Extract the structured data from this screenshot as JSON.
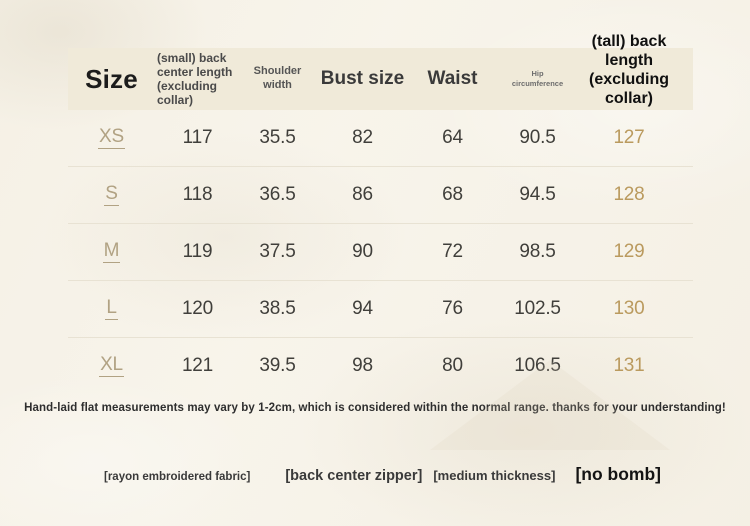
{
  "table": {
    "columns": [
      {
        "label": "Size"
      },
      {
        "label": "(small) back center length (excluding collar)"
      },
      {
        "label": "Shoulder width"
      },
      {
        "label": "Bust size"
      },
      {
        "label": "Waist"
      },
      {
        "label": "Hip circumference"
      },
      {
        "label": "(tall) back length (excluding collar)"
      }
    ],
    "rows": [
      {
        "size": "XS",
        "values": [
          "117",
          "35.5",
          "82",
          "64",
          "90.5",
          "127"
        ]
      },
      {
        "size": "S",
        "values": [
          "118",
          "36.5",
          "86",
          "68",
          "94.5",
          "128"
        ]
      },
      {
        "size": "M",
        "values": [
          "119",
          "37.5",
          "90",
          "72",
          "98.5",
          "129"
        ]
      },
      {
        "size": "L",
        "values": [
          "120",
          "38.5",
          "94",
          "76",
          "102.5",
          "130"
        ]
      },
      {
        "size": "XL",
        "values": [
          "121",
          "39.5",
          "98",
          "80",
          "106.5",
          "131"
        ]
      }
    ]
  },
  "note": "Hand-laid flat measurements may vary by 1-2cm, which is considered within the normal range. thanks for your understanding!",
  "tags": {
    "fabric": "[rayon embroidered fabric]",
    "zipper": "[back center zipper]",
    "thickness": "[medium thickness]",
    "stretch": "[no bomb]"
  },
  "colors": {
    "page_background": "#f7f3e9",
    "header_band": "#f0ead9",
    "size_link": "#b1a283",
    "tall_column_gold": "#ba9a5e",
    "body_text": "#403f3b",
    "divider": "#e8e2d3"
  },
  "chart_data": {
    "type": "table",
    "title": "Garment size chart (cm)",
    "columns": [
      "Size",
      "(small) back center length (excluding collar)",
      "Shoulder width",
      "Bust size",
      "Waist",
      "Hip circumference",
      "(tall) back length (excluding collar)"
    ],
    "rows": [
      [
        "XS",
        117,
        35.5,
        82,
        64,
        90.5,
        127
      ],
      [
        "S",
        118,
        36.5,
        86,
        68,
        94.5,
        128
      ],
      [
        "M",
        119,
        37.5,
        90,
        72,
        98.5,
        129
      ],
      [
        "L",
        120,
        38.5,
        94,
        76,
        102.5,
        130
      ],
      [
        "XL",
        121,
        39.5,
        98,
        80,
        106.5,
        131
      ]
    ],
    "footnote": "Hand-laid flat measurements may vary by 1-2cm, which is considered within the normal range. thanks for your understanding!"
  }
}
